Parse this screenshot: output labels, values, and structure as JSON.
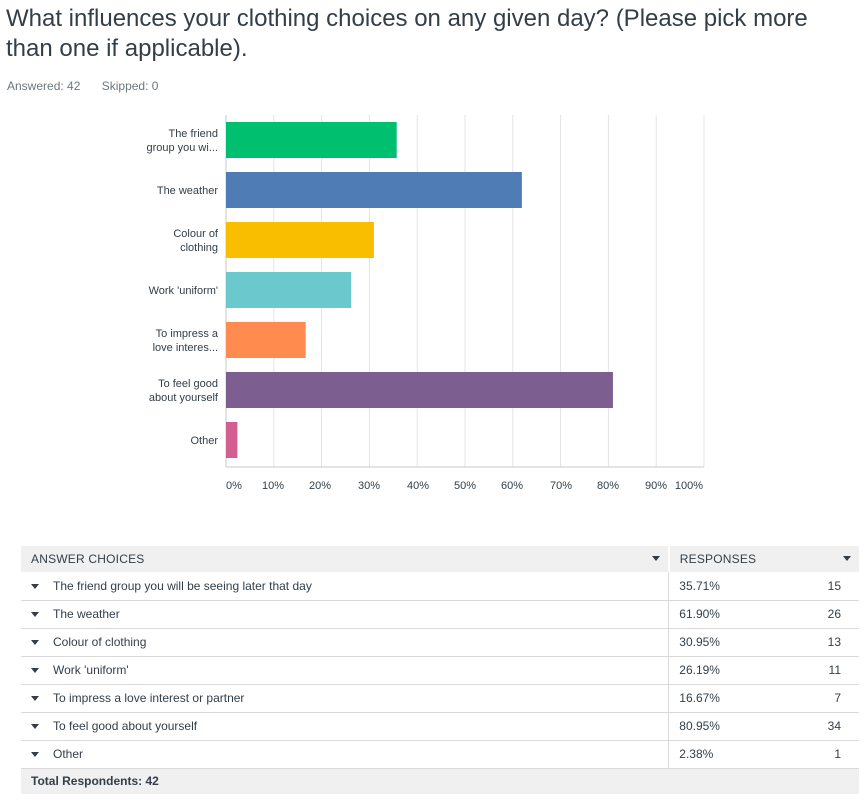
{
  "question": "What influences your clothing choices on any given day? (Please pick more than one if applicable).",
  "stats": {
    "answered": "Answered: 42",
    "skipped": "Skipped: 0"
  },
  "chart_data": {
    "type": "bar",
    "orientation": "horizontal",
    "categories": [
      [
        "The friend",
        "group you wi..."
      ],
      [
        "The weather"
      ],
      [
        "Colour of",
        "clothing"
      ],
      [
        "Work 'uniform'"
      ],
      [
        "To impress a",
        "love interes..."
      ],
      [
        "To feel good",
        "about yourself"
      ],
      [
        "Other"
      ]
    ],
    "values": [
      35.71,
      61.9,
      30.95,
      26.19,
      16.67,
      80.95,
      2.38
    ],
    "colors": [
      "#00bf6f",
      "#507cb6",
      "#f9be00",
      "#6bc8cd",
      "#ff8b4f",
      "#7d5e90",
      "#d25f90"
    ],
    "xticks": [
      "0%",
      "10%",
      "20%",
      "30%",
      "40%",
      "50%",
      "60%",
      "70%",
      "80%",
      "90%",
      "100%"
    ],
    "xlim": [
      0,
      100
    ],
    "grid": true
  },
  "table": {
    "headers": {
      "answer": "ANSWER CHOICES",
      "responses": "RESPONSES"
    },
    "rows": [
      {
        "label": "The friend group you will be seeing later that day",
        "pct": "35.71%",
        "count": "15"
      },
      {
        "label": "The weather",
        "pct": "61.90%",
        "count": "26"
      },
      {
        "label": "Colour of clothing",
        "pct": "30.95%",
        "count": "13"
      },
      {
        "label": "Work 'uniform'",
        "pct": "26.19%",
        "count": "11"
      },
      {
        "label": "To impress a love interest or partner",
        "pct": "16.67%",
        "count": "7"
      },
      {
        "label": "To feel good about yourself",
        "pct": "80.95%",
        "count": "34"
      },
      {
        "label": "Other",
        "pct": "2.38%",
        "count": "1"
      }
    ],
    "total": "Total Respondents: 42"
  }
}
